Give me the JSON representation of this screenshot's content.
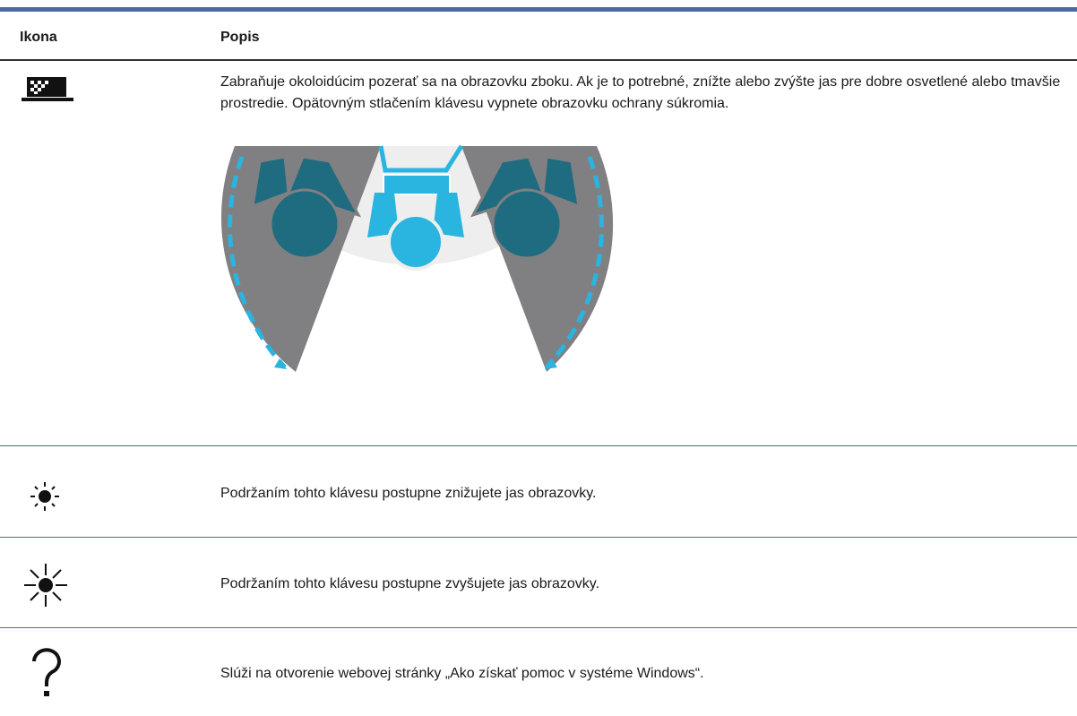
{
  "table": {
    "header": [
      "Ikona",
      "Popis"
    ],
    "rows": [
      {
        "description": "Zabraňuje okoloidúcim pozerať sa na obrazovku zboku. Ak je to potrebné, znížte alebo zvýšte jas pre dobre osvetlené alebo tmavšie prostredie. Opätovným stlačením klávesu vypnete obrazovku ochrany súkromia."
      },
      {
        "description": "Podržaním tohto klávesu postupne znižujete jas obrazovky."
      },
      {
        "description": "Podržaním tohto klávesu postupne zvyšujete jas obrazovky."
      },
      {
        "description": "Slúži na otvorenie webovej stránky „Ako získať pomoc v systéme Windows“."
      }
    ]
  }
}
